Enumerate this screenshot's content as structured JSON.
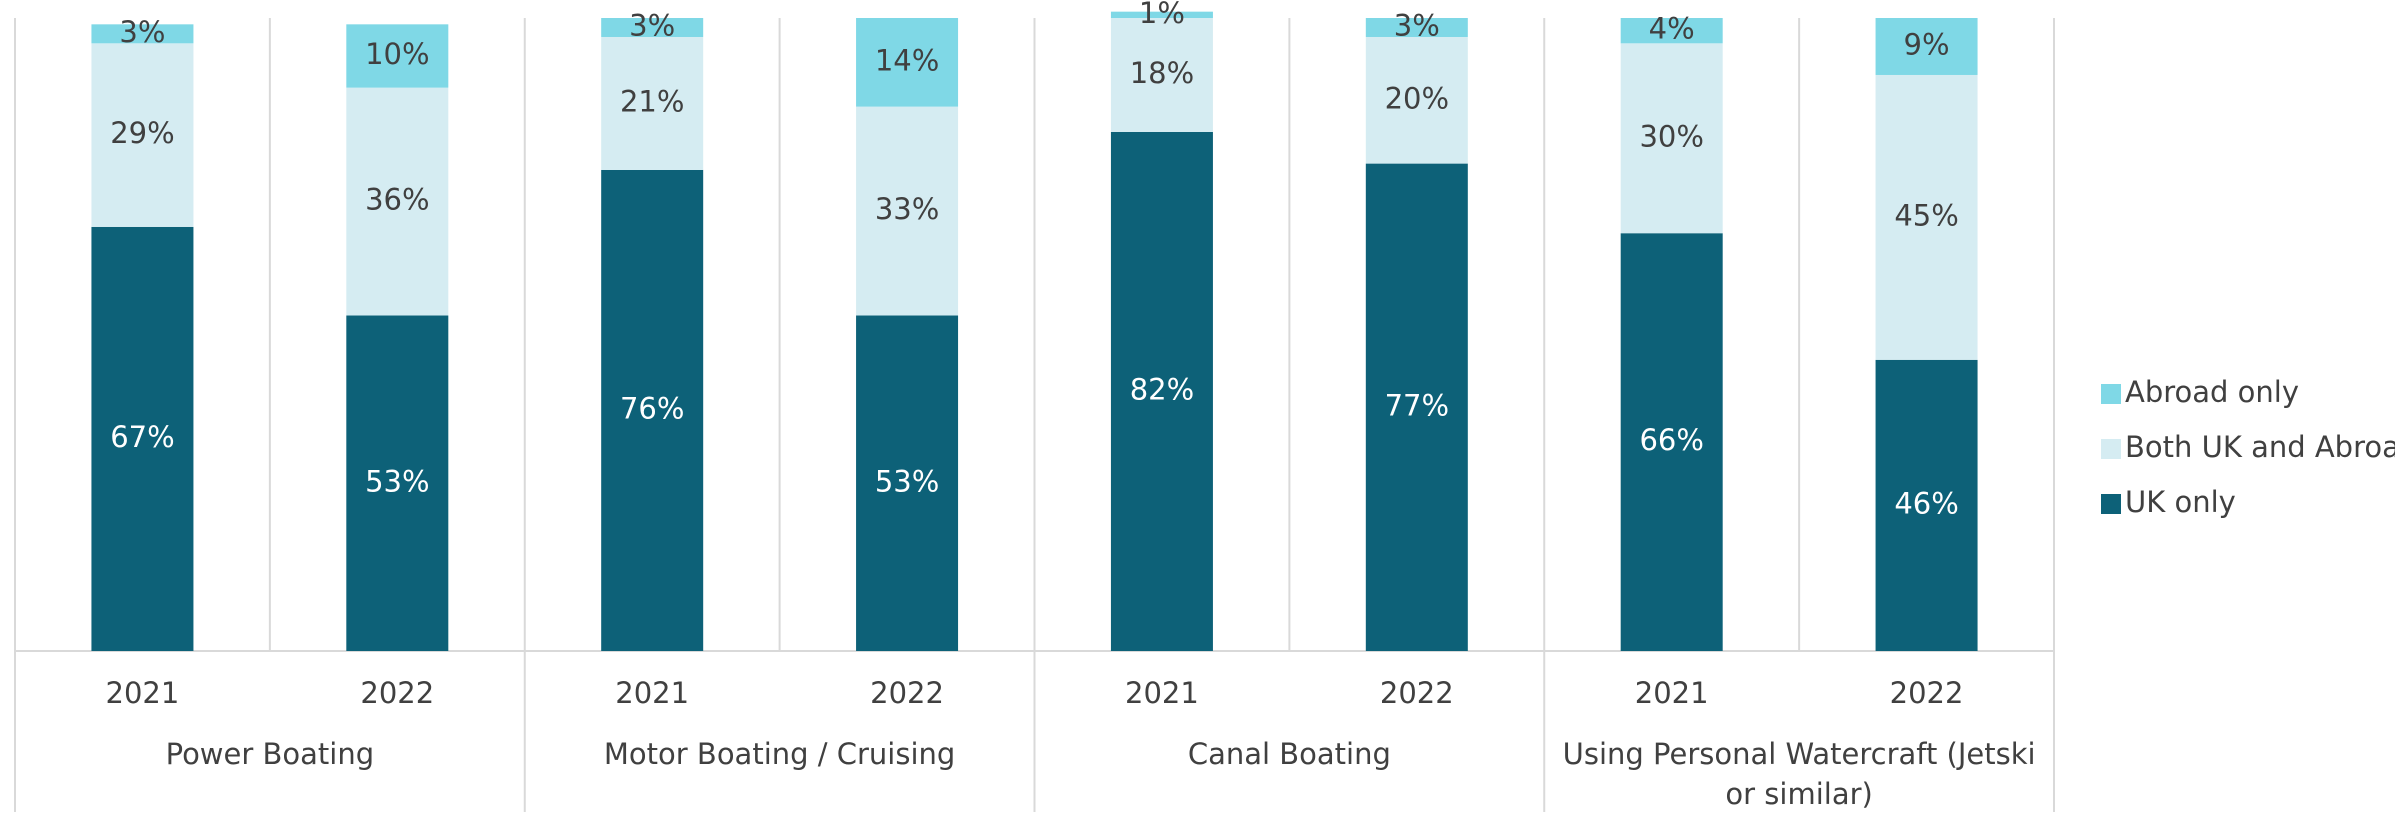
{
  "chart_data": {
    "type": "stacked_bar",
    "groups": [
      "Power Boating",
      "Motor Boating / Cruising",
      "Canal Boating",
      "Using Personal Watercraft (Jetski or similar)"
    ],
    "categories": [
      "2021",
      "2022",
      "2021",
      "2022",
      "2021",
      "2022",
      "2021",
      "2022"
    ],
    "ylim": [
      0,
      100
    ],
    "series": [
      {
        "name": "UK only",
        "color": "#0d6178",
        "label_color": "#ffffff",
        "values": [
          67,
          53,
          76,
          53,
          82,
          77,
          66,
          46
        ],
        "value_labels": [
          "67%",
          "53%",
          "76%",
          "53%",
          "82%",
          "77%",
          "66%",
          "46%"
        ]
      },
      {
        "name": "Both UK and Abroad",
        "color": "#d5ecf2",
        "label_color": "#404040",
        "values": [
          29,
          36,
          21,
          33,
          18,
          20,
          30,
          45
        ],
        "value_labels": [
          "29%",
          "36%",
          "21%",
          "33%",
          "18%",
          "20%",
          "30%",
          "45%"
        ]
      },
      {
        "name": "Abroad only",
        "color": "#7fd8e6",
        "label_color": "#404040",
        "values": [
          3,
          10,
          3,
          14,
          1,
          3,
          4,
          9
        ],
        "value_labels": [
          "3%",
          "10%",
          "3%",
          "14%",
          "1%",
          "3%",
          "4%",
          "9%"
        ]
      }
    ],
    "legend": "right"
  }
}
